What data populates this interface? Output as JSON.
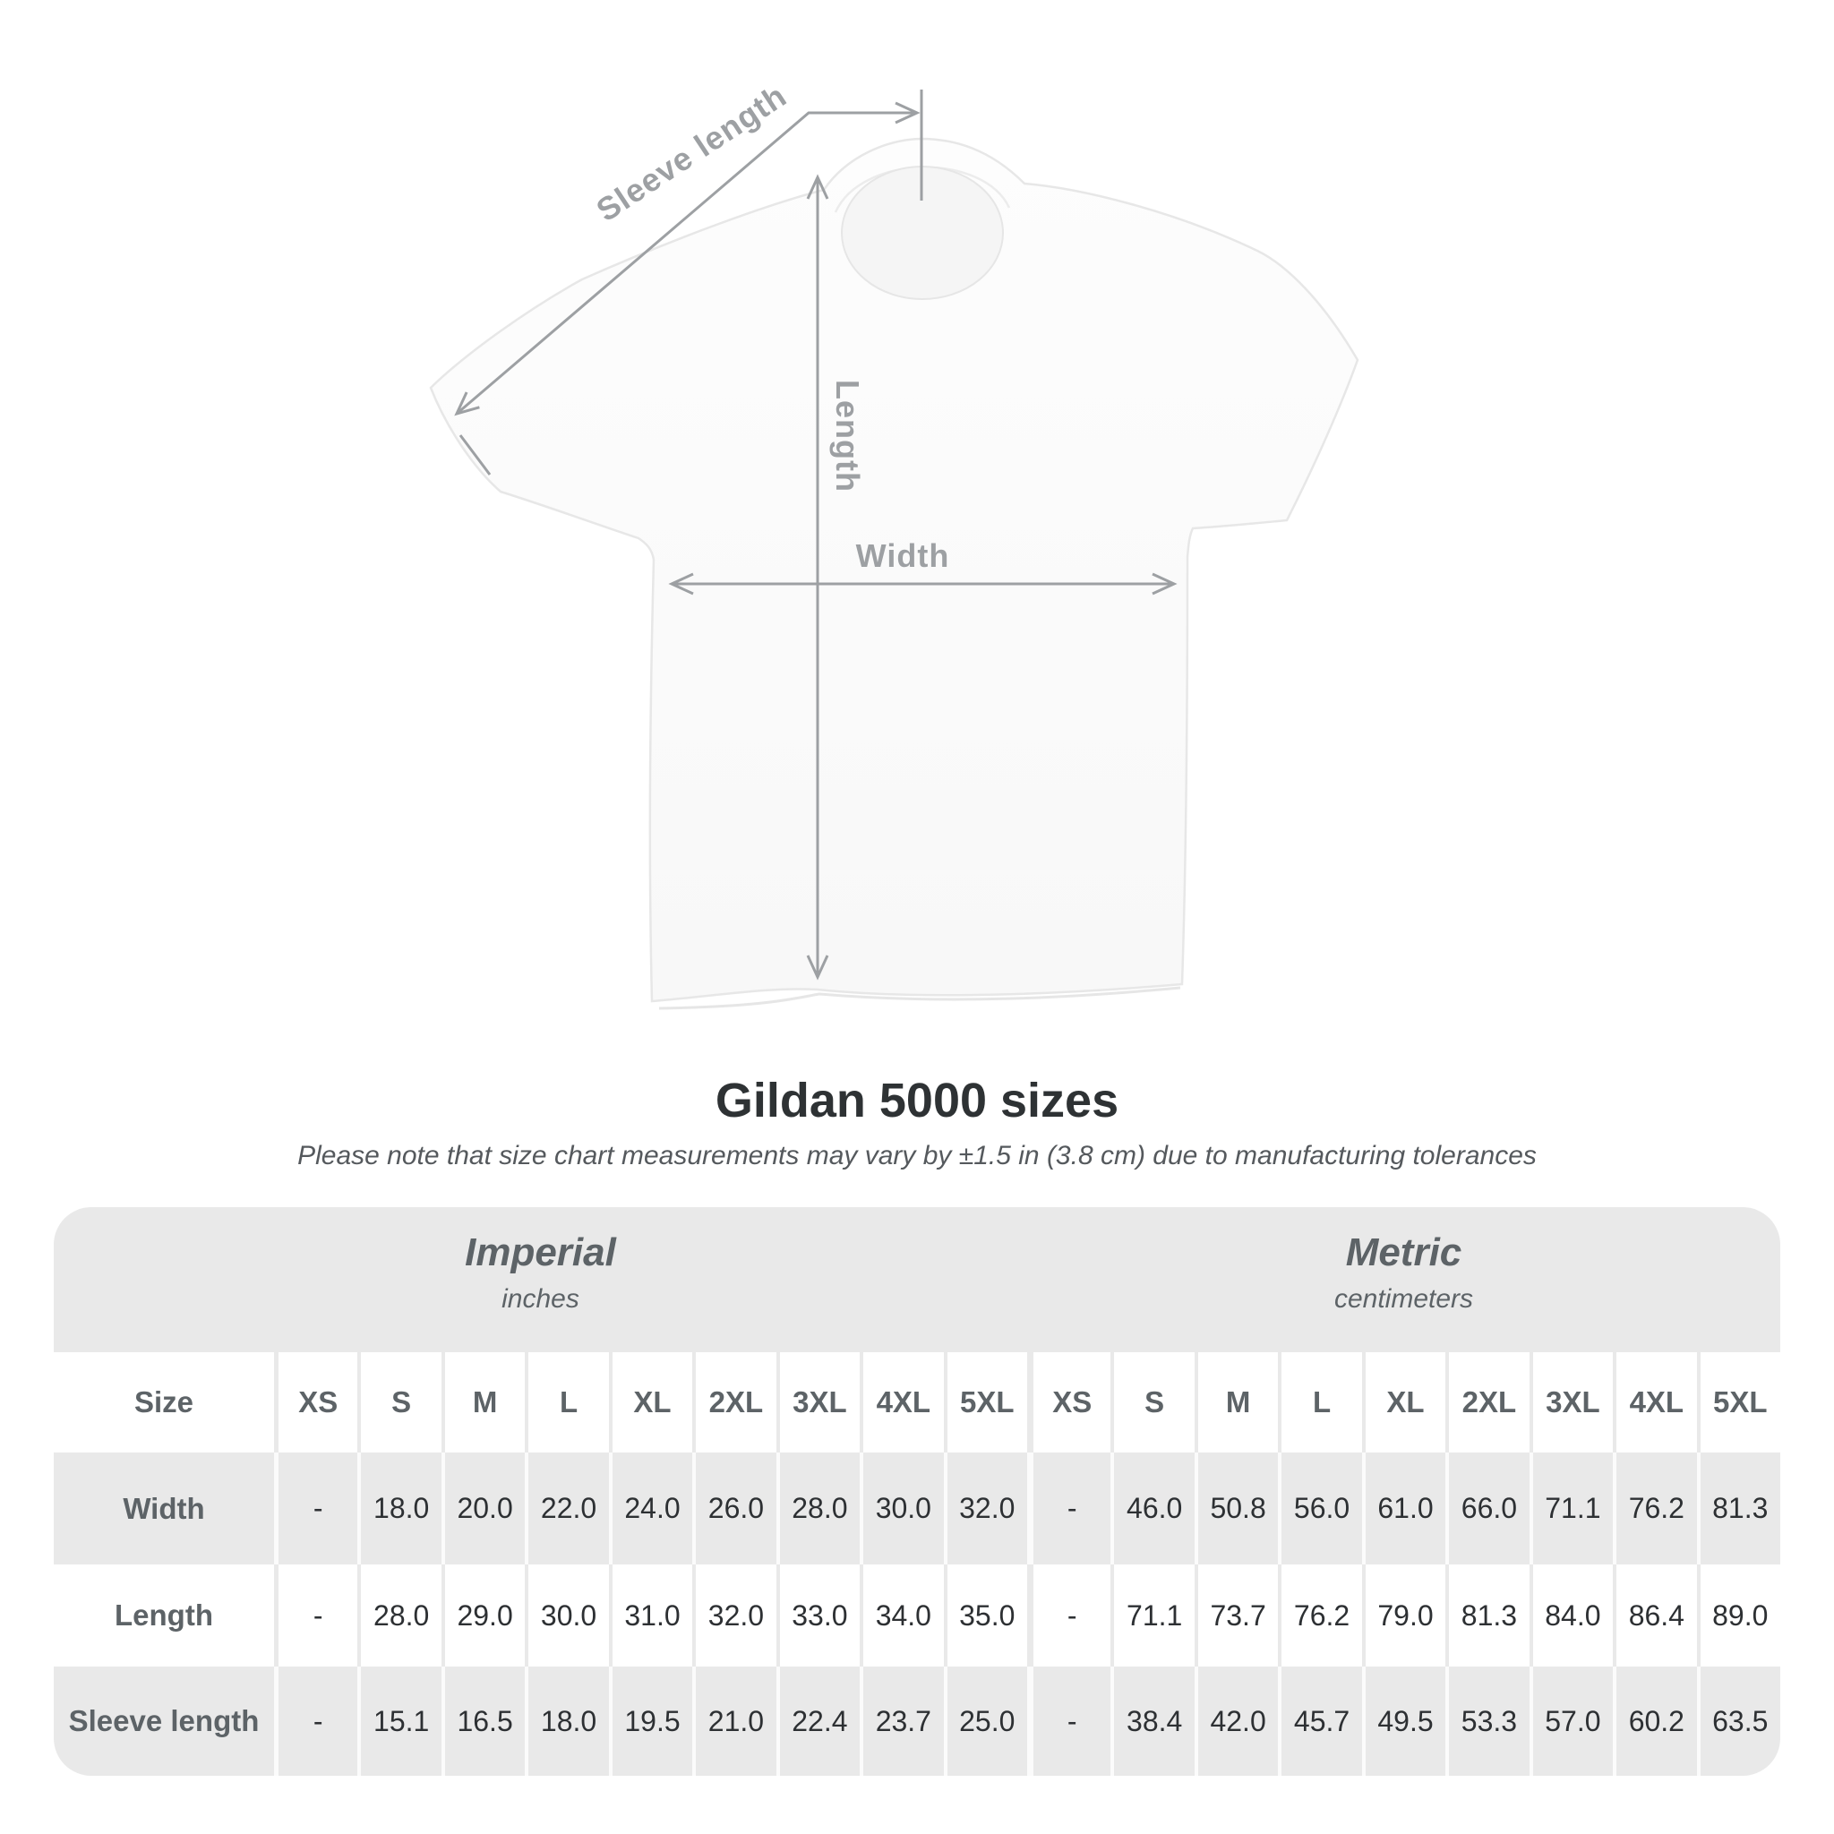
{
  "diagram": {
    "labels": {
      "sleeve_length": "Sleeve length",
      "length": "Length",
      "width": "Width"
    }
  },
  "title": "Gildan 5000 sizes",
  "subtitle": "Please note that size chart measurements may vary by ±1.5 in (3.8 cm) due to manufacturing tolerances",
  "table": {
    "sections": [
      {
        "name": "Imperial",
        "unit": "inches"
      },
      {
        "name": "Metric",
        "unit": "centimeters"
      }
    ],
    "size_label": "Size",
    "sizes": [
      "XS",
      "S",
      "M",
      "L",
      "XL",
      "2XL",
      "3XL",
      "4XL",
      "5XL"
    ],
    "rows": [
      {
        "label": "Width",
        "imperial": [
          "-",
          "18.0",
          "20.0",
          "22.0",
          "24.0",
          "26.0",
          "28.0",
          "30.0",
          "32.0"
        ],
        "metric": [
          "-",
          "46.0",
          "50.8",
          "56.0",
          "61.0",
          "66.0",
          "71.1",
          "76.2",
          "81.3"
        ]
      },
      {
        "label": "Length",
        "imperial": [
          "-",
          "28.0",
          "29.0",
          "30.0",
          "31.0",
          "32.0",
          "33.0",
          "34.0",
          "35.0"
        ],
        "metric": [
          "-",
          "71.1",
          "73.7",
          "76.2",
          "79.0",
          "81.3",
          "84.0",
          "86.4",
          "89.0"
        ]
      },
      {
        "label": "Sleeve length",
        "imperial": [
          "-",
          "15.1",
          "16.5",
          "18.0",
          "19.5",
          "21.0",
          "22.4",
          "23.7",
          "25.0"
        ],
        "metric": [
          "-",
          "38.4",
          "42.0",
          "45.7",
          "49.5",
          "53.3",
          "57.0",
          "60.2",
          "63.5"
        ]
      }
    ]
  },
  "colors": {
    "stripe_gray": "#e9e9e9",
    "separator_light": "#fbfbfb",
    "header_text": "#5d6367",
    "value_text": "#2d3033",
    "title_text": "#2e3234",
    "subtitle_text": "#55595d",
    "dimension_gray": "#9da0a3",
    "shirt_outline": "#e7e7e7"
  }
}
